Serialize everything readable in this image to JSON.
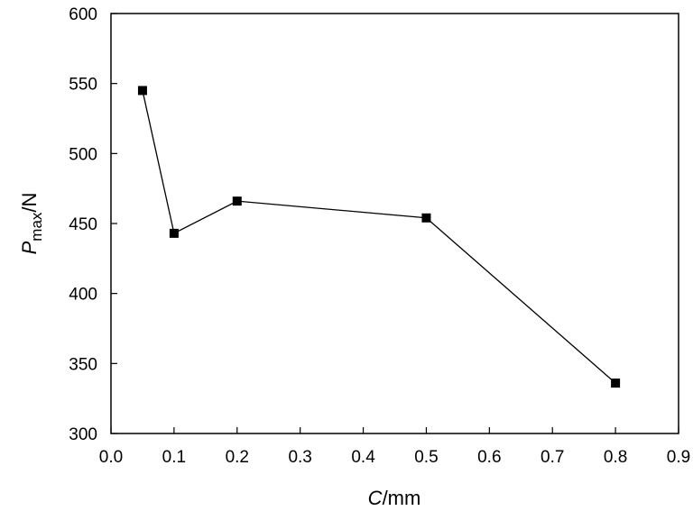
{
  "chart_data": {
    "type": "line",
    "title": "",
    "xlabel": {
      "var": "C",
      "unit": "/mm"
    },
    "ylabel": {
      "var": "P",
      "sub": "max",
      "unit": "/N"
    },
    "xlim": [
      0.0,
      0.9
    ],
    "ylim": [
      300,
      600
    ],
    "xticks": [
      "0.0",
      "0.1",
      "0.2",
      "0.3",
      "0.4",
      "0.5",
      "0.6",
      "0.7",
      "0.8",
      "0.9"
    ],
    "yticks": [
      "300",
      "350",
      "400",
      "450",
      "500",
      "550",
      "600"
    ],
    "grid": false,
    "legend": "none",
    "marker": "square",
    "line_color": "#000000",
    "series": [
      {
        "x": [
          0.05,
          0.1,
          0.2,
          0.5,
          0.8
        ],
        "y": [
          545,
          443,
          466,
          454,
          336
        ]
      }
    ]
  }
}
